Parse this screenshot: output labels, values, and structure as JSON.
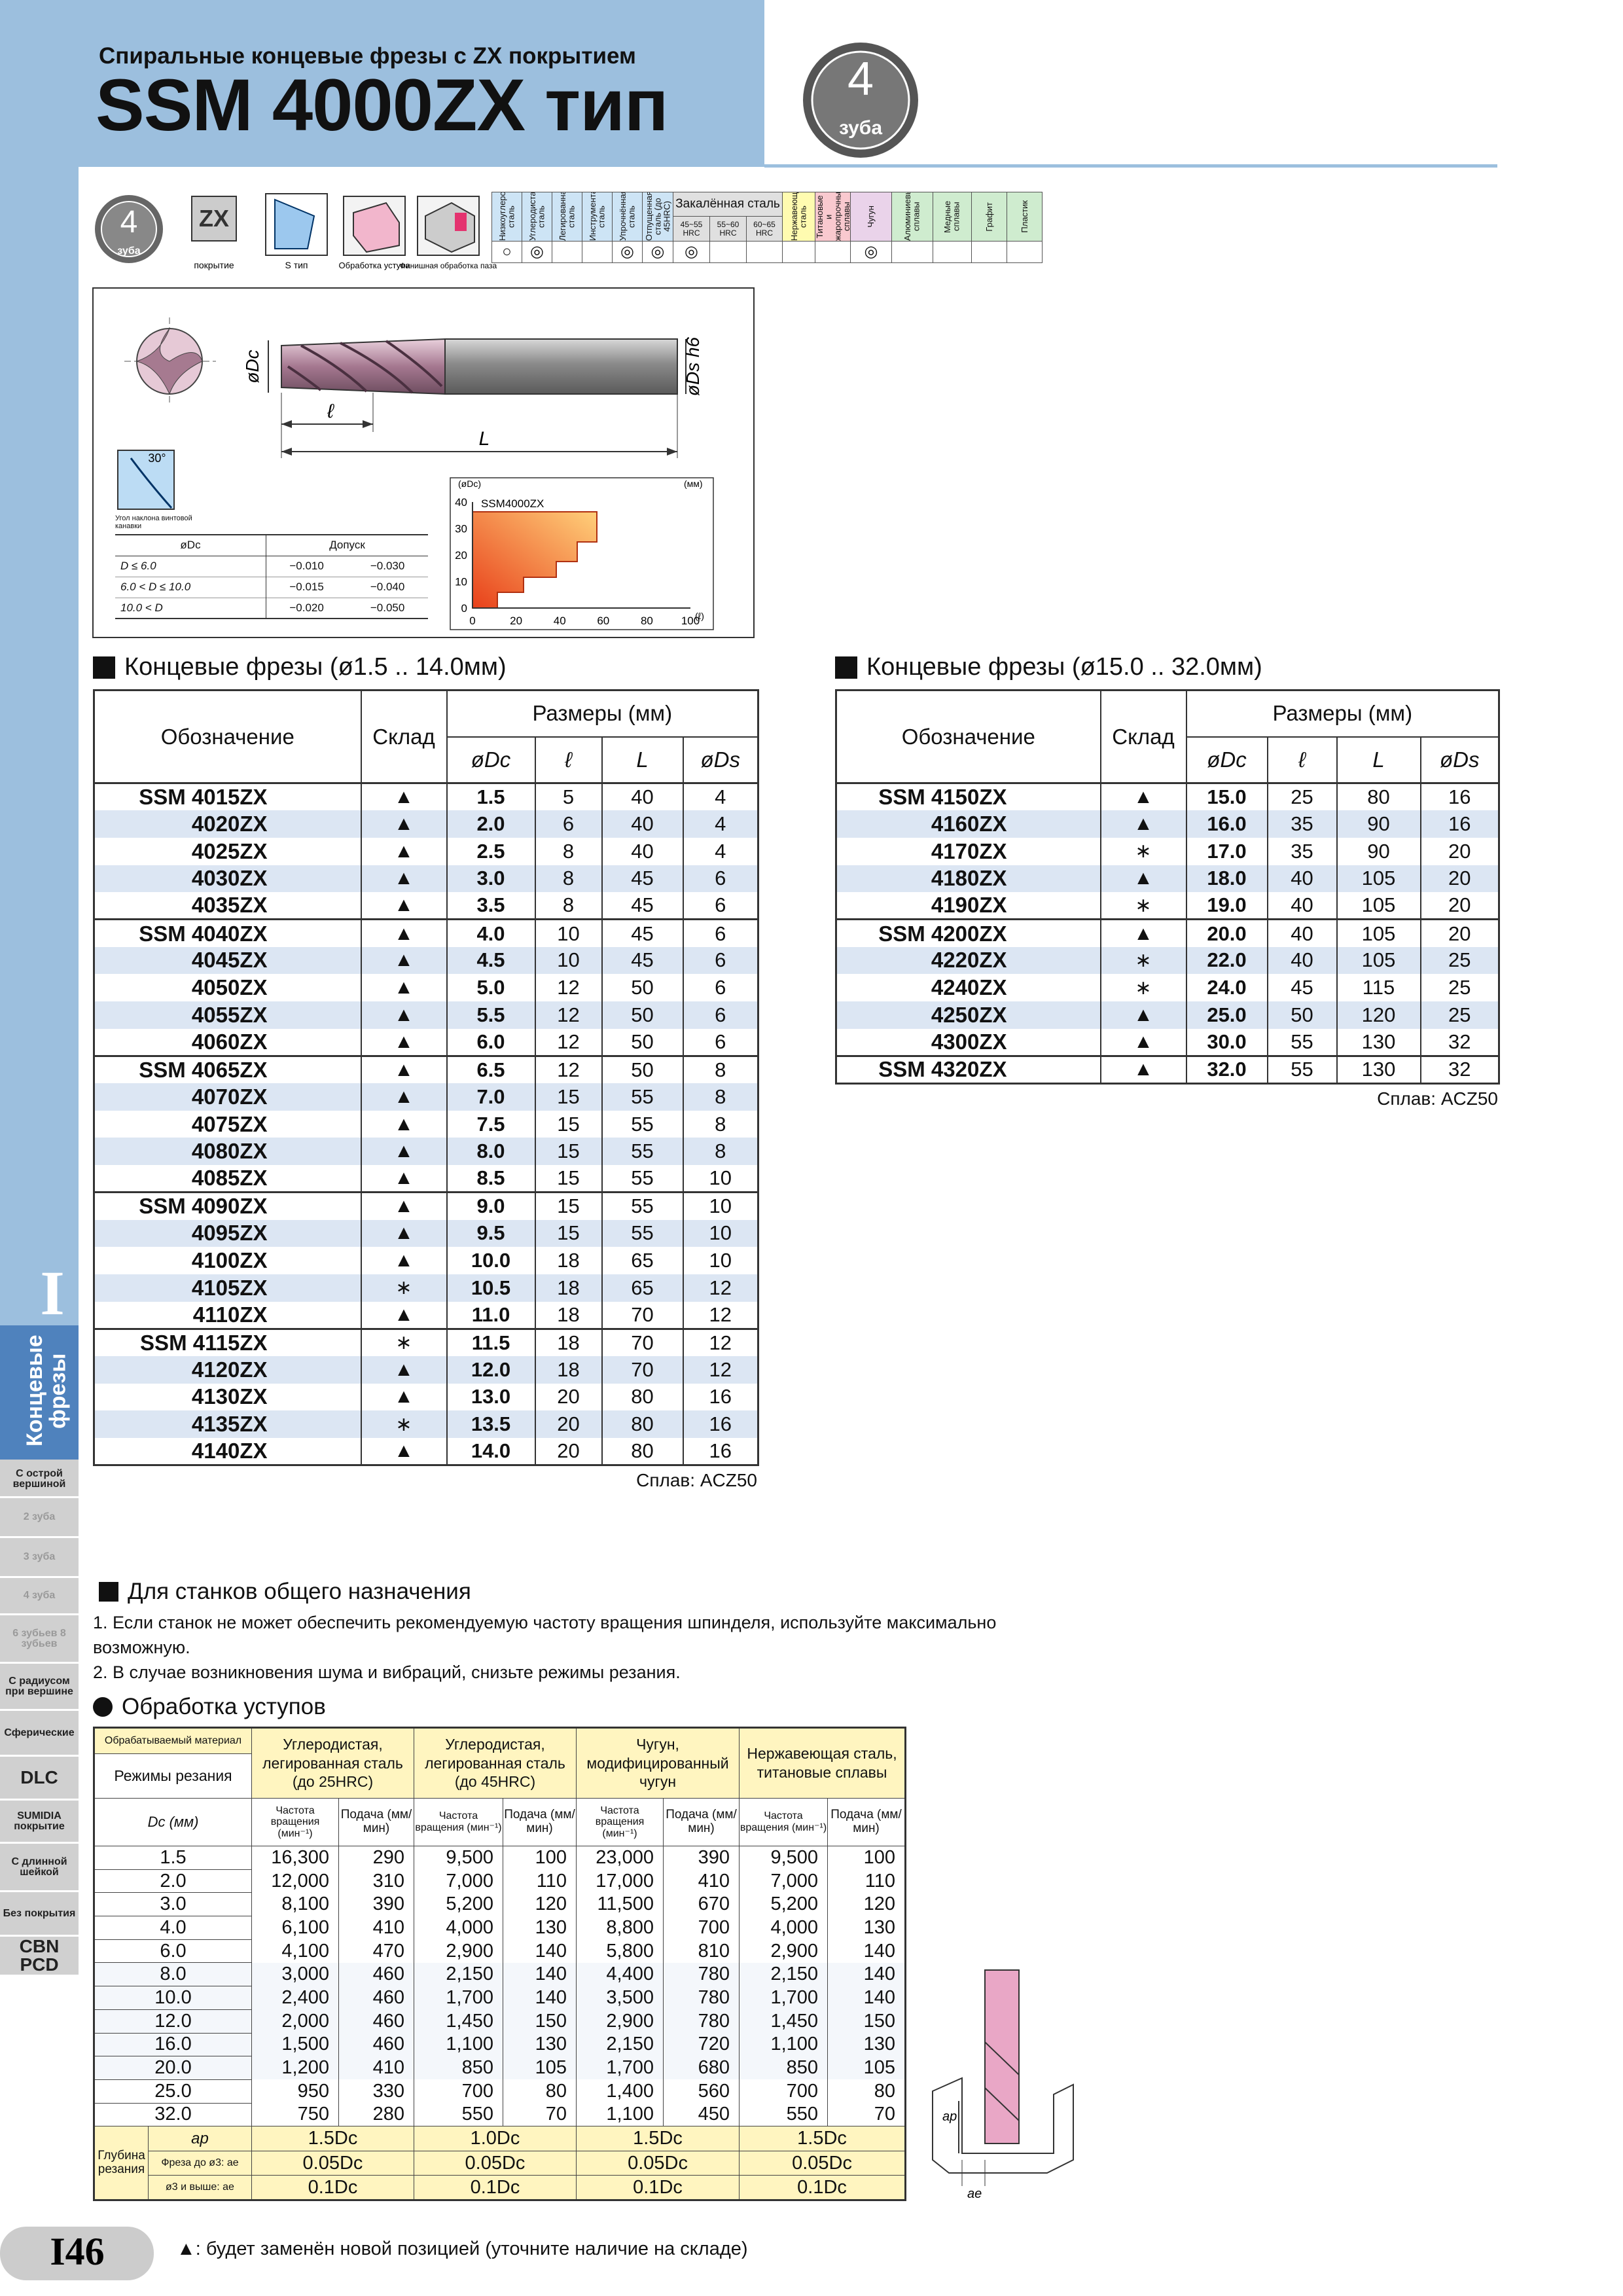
{
  "header": {
    "subtitle": "Спиральные концевые фрезы с ZX покрытием",
    "title": "SSM 4000ZX тип",
    "badge_number": "4",
    "badge_text": "зуба"
  },
  "icons": {
    "flutes_number": "4",
    "flutes_text": "зуба",
    "coating": "ZX",
    "coating_caption": "покрытие",
    "type_caption": "S тип",
    "shoulder_caption": "Обработка уступа",
    "slot_caption": "Финишная обработка паза"
  },
  "materials": {
    "pre": [
      {
        "label": "Низкоуглеродистая сталь",
        "mark": "○"
      },
      {
        "label": "Углеродистая сталь",
        "mark": "◎"
      },
      {
        "label": "Легированная сталь",
        "mark": ""
      },
      {
        "label": "Инструментальная сталь",
        "mark": ""
      },
      {
        "label": "Упрочнённая сталь",
        "mark": "◎"
      },
      {
        "label": "Отпущенная сталь (до 45HRC)",
        "mark": "◎"
      }
    ],
    "hardened": {
      "label": "Закалённая сталь",
      "columns": [
        {
          "label": "45~55 HRC",
          "mark": "◎"
        },
        {
          "label": "55~60 HRC",
          "mark": ""
        },
        {
          "label": "60~65 HRC",
          "mark": ""
        }
      ]
    },
    "post": [
      {
        "label": "Нержавеющая сталь",
        "mark": ""
      },
      {
        "label": "Титановые и жаропрочные сплавы",
        "mark": ""
      },
      {
        "label": "Чугун",
        "mark": "◎"
      },
      {
        "label": "Алюминиевые сплавы",
        "mark": ""
      },
      {
        "label": "Медные сплавы",
        "mark": ""
      },
      {
        "label": "Графит",
        "mark": ""
      },
      {
        "label": "Пластик",
        "mark": ""
      }
    ]
  },
  "drawing": {
    "dc": "øDc",
    "ds": "øDs h6",
    "l": "ℓ",
    "L": "L",
    "helix_angle": "30°",
    "helix_caption": "Угол наклона винтовой канавки"
  },
  "tolerance": {
    "header": [
      "øDc",
      "Допуск"
    ],
    "rows": [
      [
        "D ≤ 6.0",
        "−0.010",
        "−0.030"
      ],
      [
        "6.0 < D ≤ 10.0",
        "−0.015",
        "−0.040"
      ],
      [
        "10.0 < D",
        "−0.020",
        "−0.050"
      ]
    ]
  },
  "range_chart": {
    "y_label": "(øDc)",
    "unit": "(мм)",
    "series": "SSM4000ZX",
    "yticks": [
      "0",
      "10",
      "20",
      "30",
      "40"
    ],
    "xticks": [
      "0",
      "20",
      "40",
      "60",
      "80",
      "100"
    ],
    "x_label": "(ℓ)"
  },
  "sizes_small": {
    "title": "Концевые фрезы (ø1.5 .. 14.0мм)",
    "designation": "Обозначение",
    "stock": "Склад",
    "dims": "Размеры (мм)",
    "columns": [
      "øDc",
      "ℓ",
      "L",
      "øDs"
    ],
    "alloy": "Сплав: ACZ50",
    "rows": [
      [
        "SSM 4015ZX",
        "▲",
        "1.5",
        "5",
        "40",
        "4"
      ],
      [
        "4020ZX",
        "▲",
        "2.0",
        "6",
        "40",
        "4"
      ],
      [
        "4025ZX",
        "▲",
        "2.5",
        "8",
        "40",
        "4"
      ],
      [
        "4030ZX",
        "▲",
        "3.0",
        "8",
        "45",
        "6"
      ],
      [
        "4035ZX",
        "▲",
        "3.5",
        "8",
        "45",
        "6"
      ],
      [
        "SSM 4040ZX",
        "▲",
        "4.0",
        "10",
        "45",
        "6"
      ],
      [
        "4045ZX",
        "▲",
        "4.5",
        "10",
        "45",
        "6"
      ],
      [
        "4050ZX",
        "▲",
        "5.0",
        "12",
        "50",
        "6"
      ],
      [
        "4055ZX",
        "▲",
        "5.5",
        "12",
        "50",
        "6"
      ],
      [
        "4060ZX",
        "▲",
        "6.0",
        "12",
        "50",
        "6"
      ],
      [
        "SSM 4065ZX",
        "▲",
        "6.5",
        "12",
        "50",
        "8"
      ],
      [
        "4070ZX",
        "▲",
        "7.0",
        "15",
        "55",
        "8"
      ],
      [
        "4075ZX",
        "▲",
        "7.5",
        "15",
        "55",
        "8"
      ],
      [
        "4080ZX",
        "▲",
        "8.0",
        "15",
        "55",
        "8"
      ],
      [
        "4085ZX",
        "▲",
        "8.5",
        "15",
        "55",
        "10"
      ],
      [
        "SSM 4090ZX",
        "▲",
        "9.0",
        "15",
        "55",
        "10"
      ],
      [
        "4095ZX",
        "▲",
        "9.5",
        "15",
        "55",
        "10"
      ],
      [
        "4100ZX",
        "▲",
        "10.0",
        "18",
        "65",
        "10"
      ],
      [
        "4105ZX",
        "∗",
        "10.5",
        "18",
        "65",
        "12"
      ],
      [
        "4110ZX",
        "▲",
        "11.0",
        "18",
        "70",
        "12"
      ],
      [
        "SSM 4115ZX",
        "∗",
        "11.5",
        "18",
        "70",
        "12"
      ],
      [
        "4120ZX",
        "▲",
        "12.0",
        "18",
        "70",
        "12"
      ],
      [
        "4130ZX",
        "▲",
        "13.0",
        "20",
        "80",
        "16"
      ],
      [
        "4135ZX",
        "∗",
        "13.5",
        "20",
        "80",
        "16"
      ],
      [
        "4140ZX",
        "▲",
        "14.0",
        "20",
        "80",
        "16"
      ]
    ]
  },
  "sizes_large": {
    "title": "Концевые фрезы (ø15.0 .. 32.0мм)",
    "designation": "Обозначение",
    "stock": "Склад",
    "dims": "Размеры (мм)",
    "columns": [
      "øDc",
      "ℓ",
      "L",
      "øDs"
    ],
    "alloy": "Сплав: ACZ50",
    "rows": [
      [
        "SSM 4150ZX",
        "▲",
        "15.0",
        "25",
        "80",
        "16"
      ],
      [
        "4160ZX",
        "▲",
        "16.0",
        "35",
        "90",
        "16"
      ],
      [
        "4170ZX",
        "∗",
        "17.0",
        "35",
        "90",
        "20"
      ],
      [
        "4180ZX",
        "▲",
        "18.0",
        "40",
        "105",
        "20"
      ],
      [
        "4190ZX",
        "∗",
        "19.0",
        "40",
        "105",
        "20"
      ],
      [
        "SSM 4200ZX",
        "▲",
        "20.0",
        "40",
        "105",
        "20"
      ],
      [
        "4220ZX",
        "∗",
        "22.0",
        "40",
        "105",
        "25"
      ],
      [
        "4240ZX",
        "∗",
        "24.0",
        "45",
        "115",
        "25"
      ],
      [
        "4250ZX",
        "▲",
        "25.0",
        "50",
        "120",
        "25"
      ],
      [
        "4300ZX",
        "▲",
        "30.0",
        "55",
        "130",
        "32"
      ],
      [
        "SSM 4320ZX",
        "▲",
        "32.0",
        "55",
        "130",
        "32"
      ]
    ]
  },
  "sidebar": {
    "section": "I",
    "category": "Концевые фрезы",
    "tabs": [
      "С острой вершиной",
      "2 зуба",
      "3 зуба",
      "4 зуба",
      "6 зубьев 8 зубьев",
      "С радиусом при вершине",
      "Сферические",
      "DLC",
      "SUMIDIA покрытие",
      "С длинной шейкой",
      "Без покрытия",
      "CBN PCD"
    ]
  },
  "general": {
    "title": "Для станков общего назначения",
    "items": [
      "1. Если станок не может обеспечить рекомендуемую частоту вращения шпинделя, используйте максимально возможную.",
      "2. В случае возникновения шума и вибраций, снизьте режимы резания."
    ]
  },
  "cutting": {
    "title": "Обработка уступов",
    "material_label": "Обрабатываемый материал",
    "conditions_label": "Режимы резания",
    "dc_label": "Dc (мм)",
    "materials": [
      "Углеродистая, легированная сталь (до 25HRC)",
      "Углеродистая, легированная сталь (до 45HRC)",
      "Чугун, модифицированный чугун",
      "Нержавеющая сталь, титановые сплавы"
    ],
    "subheaders": [
      "Частота вращения (мин⁻¹)",
      "Подача (мм/мин)"
    ],
    "rows": [
      [
        "1.5",
        "16,300",
        "290",
        "9,500",
        "100",
        "23,000",
        "390",
        "9,500",
        "100"
      ],
      [
        "2.0",
        "12,000",
        "310",
        "7,000",
        "110",
        "17,000",
        "410",
        "7,000",
        "110"
      ],
      [
        "3.0",
        "8,100",
        "390",
        "5,200",
        "120",
        "11,500",
        "670",
        "5,200",
        "120"
      ],
      [
        "4.0",
        "6,100",
        "410",
        "4,000",
        "130",
        "8,800",
        "700",
        "4,000",
        "130"
      ],
      [
        "6.0",
        "4,100",
        "470",
        "2,900",
        "140",
        "5,800",
        "810",
        "2,900",
        "140"
      ],
      [
        "8.0",
        "3,000",
        "460",
        "2,150",
        "140",
        "4,400",
        "780",
        "2,150",
        "140"
      ],
      [
        "10.0",
        "2,400",
        "460",
        "1,700",
        "140",
        "3,500",
        "780",
        "1,700",
        "140"
      ],
      [
        "12.0",
        "2,000",
        "460",
        "1,450",
        "150",
        "2,900",
        "780",
        "1,450",
        "150"
      ],
      [
        "16.0",
        "1,500",
        "460",
        "1,100",
        "130",
        "2,150",
        "720",
        "1,100",
        "130"
      ],
      [
        "20.0",
        "1,200",
        "410",
        "850",
        "105",
        "1,700",
        "680",
        "850",
        "105"
      ],
      [
        "25.0",
        "950",
        "330",
        "700",
        "80",
        "1,400",
        "560",
        "700",
        "80"
      ],
      [
        "32.0",
        "750",
        "280",
        "550",
        "70",
        "1,100",
        "450",
        "550",
        "70"
      ]
    ],
    "depth_label": "Глубина резания",
    "depth_rows": [
      {
        "label": "ap",
        "values": [
          "1.5Dc",
          "1.0Dc",
          "1.5Dc",
          "1.5Dc"
        ]
      },
      {
        "label": "Фреза до ø3: ae",
        "values": [
          "0.05Dc",
          "0.05Dc",
          "0.05Dc",
          "0.05Dc"
        ]
      },
      {
        "label": "ø3 и выше: ae",
        "values": [
          "0.1Dc",
          "0.1Dc",
          "0.1Dc",
          "0.1Dc"
        ]
      }
    ]
  },
  "diagram": {
    "ap": "ap",
    "ae": "ae"
  },
  "footer": {
    "page_number": "I46",
    "footnote": "▲: будет заменён новой позицией (уточните наличие на складе)"
  }
}
